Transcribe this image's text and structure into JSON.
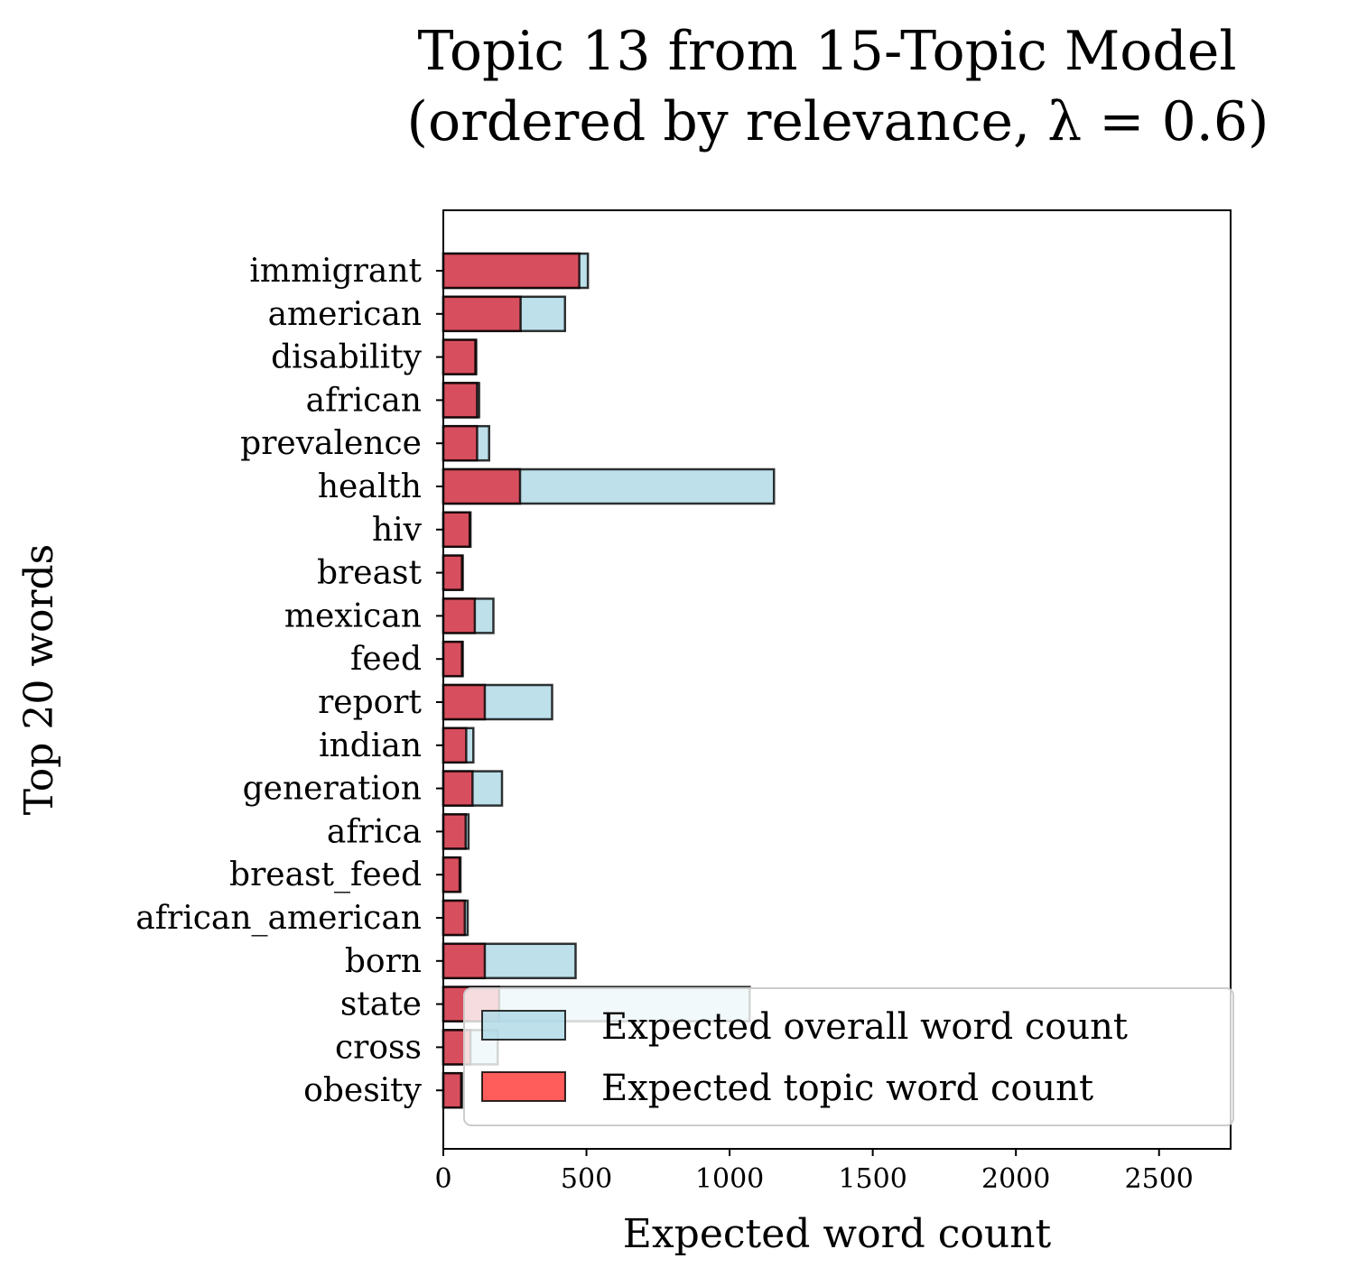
{
  "chart_data": {
    "type": "bar",
    "orientation": "horizontal",
    "title": "Topic 13 from 15-Topic Model",
    "subtitle": "(ordered by relevance, λ = 0.6)",
    "xlabel": "Expected word count",
    "ylabel": "Top 20 words",
    "xlim": [
      0,
      2750
    ],
    "xticks": [
      "0",
      "500",
      "1000",
      "1500",
      "2000",
      "2500"
    ],
    "xtick_values": [
      0,
      500,
      1000,
      1500,
      2000,
      2500
    ],
    "categories": [
      "immigrant",
      "american",
      "disability",
      "african",
      "prevalence",
      "health",
      "hiv",
      "breast",
      "mexican",
      "feed",
      "report",
      "indian",
      "generation",
      "africa",
      "breast_feed",
      "african_american",
      "born",
      "state",
      "cross",
      "obesity"
    ],
    "series": [
      {
        "name": "Expected overall word count",
        "color": "#add8e6",
        "values": [
          505,
          425,
          115,
          125,
          160,
          1155,
          95,
          68,
          175,
          68,
          380,
          105,
          205,
          88,
          60,
          85,
          462,
          1070,
          190,
          65
        ]
      },
      {
        "name": "Expected topic word count",
        "color": "#dc3545",
        "values": [
          475,
          270,
          112,
          118,
          118,
          268,
          92,
          65,
          110,
          65,
          145,
          80,
          102,
          78,
          57,
          75,
          145,
          195,
          95,
          62
        ]
      }
    ],
    "legend": "lower-right",
    "grid": false
  }
}
